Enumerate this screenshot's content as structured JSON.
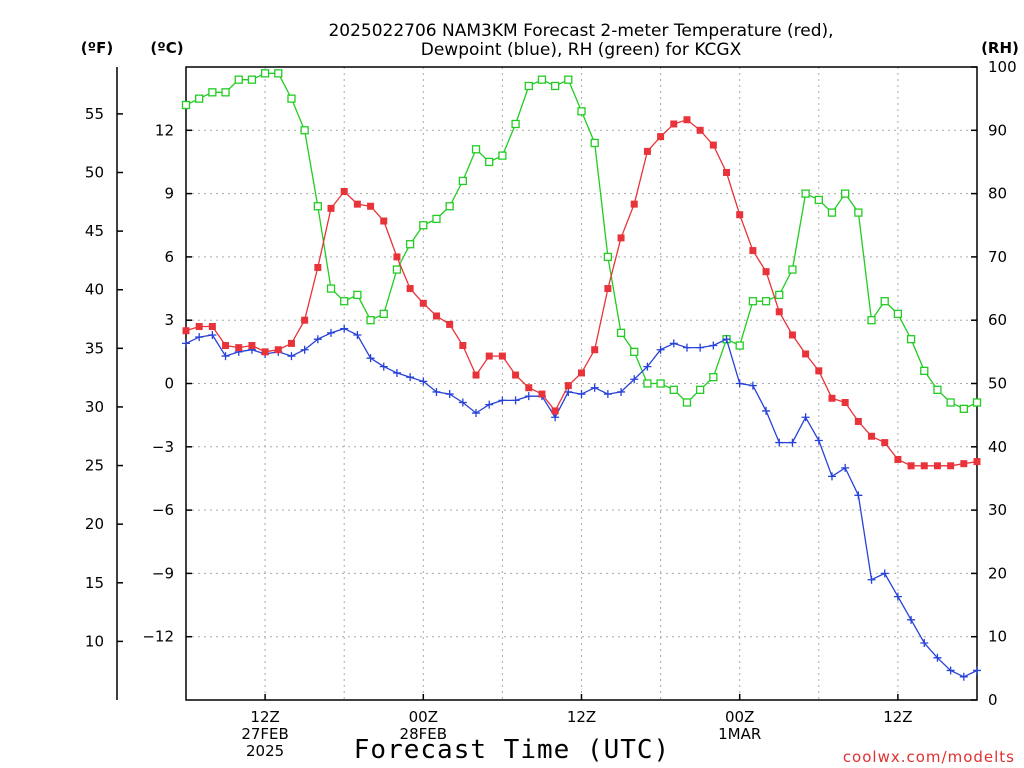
{
  "title_line1": "2025022706 NAM3KM Forecast 2-meter Temperature (red),",
  "title_line2": "Dewpoint (blue), RH (green) for KCGX",
  "units": {
    "fahrenheit": "(ºF)",
    "celsius": "(ºC)",
    "rh": "(RH)"
  },
  "xlabel": "Forecast Time (UTC)",
  "credit": "coolwx.com/modelts",
  "colors": {
    "temperature": "#e8333a",
    "dewpoint": "#2742d8",
    "rh": "#22cc22",
    "grid": "#aaaaaa"
  },
  "chart_data": {
    "type": "line",
    "x_unit": "forecast hour from 2025-02-27 06Z",
    "x": [
      0,
      1,
      2,
      3,
      4,
      5,
      6,
      7,
      8,
      9,
      10,
      11,
      12,
      13,
      14,
      15,
      16,
      17,
      18,
      19,
      20,
      21,
      22,
      23,
      24,
      25,
      26,
      27,
      28,
      29,
      30,
      31,
      32,
      33,
      34,
      35,
      36,
      37,
      38,
      39,
      40,
      41,
      42,
      43,
      44,
      45,
      46,
      47,
      48,
      49,
      50,
      51,
      52,
      53,
      54,
      55,
      56,
      57,
      58,
      59,
      60
    ],
    "xlim": [
      0,
      60
    ],
    "x_ticks": [
      {
        "x": 6,
        "lines": [
          "12Z",
          "27FEB",
          "2025"
        ]
      },
      {
        "x": 18,
        "lines": [
          "00Z",
          "28FEB"
        ]
      },
      {
        "x": 30,
        "lines": [
          "12Z"
        ]
      },
      {
        "x": 42,
        "lines": [
          "00Z",
          "1MAR"
        ]
      },
      {
        "x": 54,
        "lines": [
          "12Z"
        ]
      }
    ],
    "y_celsius": {
      "lim": [
        -15,
        15
      ],
      "ticks": [
        12,
        9,
        6,
        3,
        0,
        -3,
        -6,
        -9,
        -12
      ],
      "tick_labels": [
        "12",
        "9",
        "6",
        "3",
        "0",
        "−3",
        "−6",
        "−9",
        "−12"
      ]
    },
    "y_fahrenheit": {
      "ticks": [
        55,
        50,
        45,
        40,
        35,
        30,
        25,
        20,
        15,
        10
      ],
      "tick_labels": [
        "55",
        "50",
        "45",
        "40",
        "35",
        "30",
        "25",
        "20",
        "15",
        "10"
      ]
    },
    "y_rh": {
      "lim": [
        0,
        100
      ],
      "ticks": [
        100,
        90,
        80,
        70,
        60,
        50,
        40,
        30,
        20,
        10,
        0
      ],
      "tick_labels": [
        "100",
        "90",
        "80",
        "70",
        "60",
        "50",
        "40",
        "30",
        "20",
        "10",
        "0"
      ]
    },
    "grid": true,
    "series": [
      {
        "name": "Temperature",
        "axis": "celsius",
        "marker": "filled-square",
        "values": [
          2.5,
          2.7,
          2.7,
          1.8,
          1.7,
          1.8,
          1.5,
          1.6,
          1.9,
          3.0,
          5.5,
          8.3,
          9.1,
          8.5,
          8.4,
          7.7,
          6.0,
          4.5,
          3.8,
          3.2,
          2.8,
          1.8,
          0.4,
          1.3,
          1.3,
          0.4,
          -0.2,
          -0.5,
          -1.3,
          -0.1,
          0.5,
          1.6,
          4.5,
          6.9,
          8.5,
          11.0,
          11.7,
          12.3,
          12.5,
          12.0,
          11.3,
          10.0,
          8.0,
          6.3,
          5.3,
          3.4,
          2.3,
          1.4,
          0.6,
          -0.7,
          -0.9,
          -1.8,
          -2.5,
          -2.8,
          -3.6,
          -3.9,
          -3.9,
          -3.9,
          -3.9,
          -3.8,
          -3.7
        ]
      },
      {
        "name": "Dewpoint",
        "axis": "celsius",
        "marker": "plus",
        "values": [
          1.9,
          2.2,
          2.3,
          1.3,
          1.5,
          1.6,
          1.4,
          1.5,
          1.3,
          1.6,
          2.1,
          2.4,
          2.6,
          2.3,
          1.2,
          0.8,
          0.5,
          0.3,
          0.1,
          -0.4,
          -0.5,
          -0.9,
          -1.4,
          -1.0,
          -0.8,
          -0.8,
          -0.6,
          -0.6,
          -1.6,
          -0.4,
          -0.5,
          -0.2,
          -0.5,
          -0.4,
          0.2,
          0.8,
          1.6,
          1.9,
          1.7,
          1.7,
          1.8,
          2.1,
          0.0,
          -0.1,
          -1.3,
          -2.8,
          -2.8,
          -1.6,
          -2.7,
          -4.4,
          -4.0,
          -5.3,
          -9.3,
          -9.0,
          -10.1,
          -11.2,
          -12.3,
          -13.0,
          -13.6,
          -13.9,
          -13.6
        ]
      },
      {
        "name": "RH",
        "axis": "rh",
        "marker": "open-square",
        "values": [
          94,
          95,
          96,
          96,
          98,
          98,
          99,
          99,
          95,
          90,
          78,
          65,
          63,
          64,
          60,
          61,
          68,
          72,
          75,
          76,
          78,
          82,
          87,
          85,
          86,
          91,
          97,
          98,
          97,
          98,
          93,
          88,
          70,
          58,
          55,
          50,
          50,
          49,
          47,
          49,
          51,
          57,
          56,
          63,
          63,
          64,
          68,
          80,
          79,
          77,
          80,
          77,
          60,
          63,
          61,
          57,
          52,
          49,
          47,
          46,
          47
        ]
      }
    ]
  }
}
